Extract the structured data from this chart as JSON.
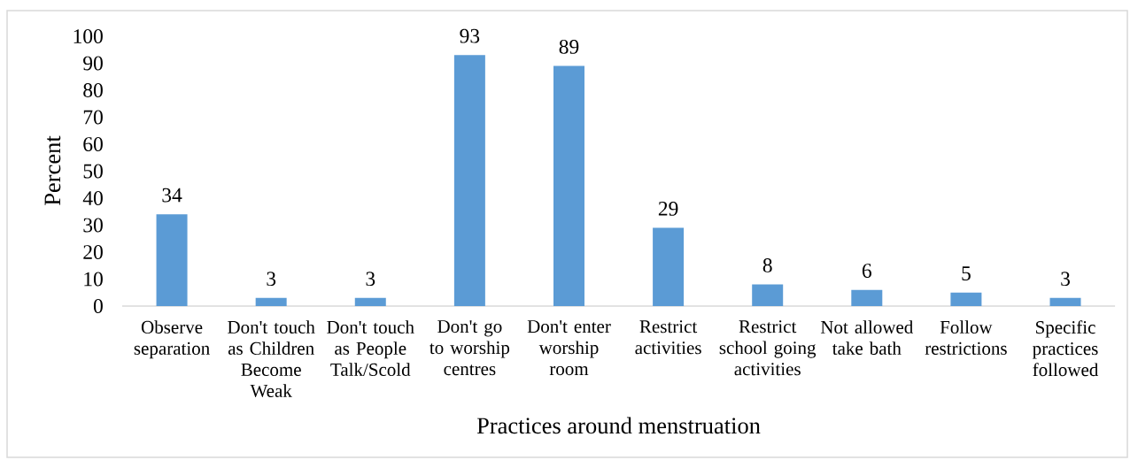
{
  "chart_data": {
    "type": "bar",
    "xlabel": "Practices around menstruation",
    "ylabel": "Percent",
    "categories": [
      "Observe separation",
      "Don't touch as Children Become Weak",
      "Don't touch as People Talk/Scold",
      "Don't go to worship centres",
      "Don't enter worship room",
      "Restrict activities",
      "Restrict school going activities",
      "Not allowed take bath",
      "Follow restrictions",
      "Specific practices followed"
    ],
    "values": [
      34,
      3,
      3,
      93,
      89,
      29,
      8,
      6,
      5,
      3
    ],
    "color": "#5b9bd5",
    "ylim": [
      0,
      100
    ],
    "yticks": [
      0,
      10,
      20,
      30,
      40,
      50,
      60,
      70,
      80,
      90,
      100
    ],
    "data_labels": true
  }
}
